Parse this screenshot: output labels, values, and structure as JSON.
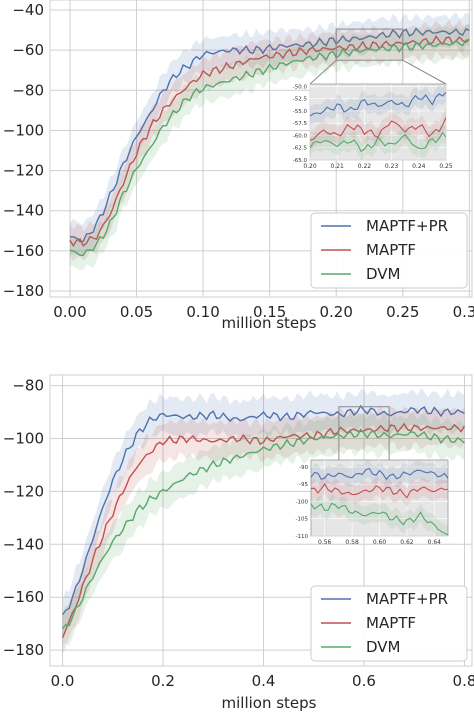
{
  "colors": {
    "plot_bg": "#eaeaf2",
    "grid": "#cfcfcf",
    "MAPTF+PR": "#4c72b0",
    "MAPTF": "#c44e52",
    "DVM": "#55a868",
    "inset_bg": "#e6e6e6"
  },
  "chart_data": [
    {
      "type": "line",
      "xlabel": "million steps",
      "ylabel": "",
      "xlim": [
        -0.015,
        0.302
      ],
      "ylim": [
        -183,
        -35
      ],
      "xticks": [
        0.0,
        0.05,
        0.1,
        0.15,
        0.2,
        0.25,
        0.3
      ],
      "xtick_labels": [
        "0.00",
        "0.05",
        "0.10",
        "0.15",
        "0.20",
        "0.25",
        "0.30"
      ],
      "yticks": [
        -40,
        -60,
        -80,
        -100,
        -120,
        -140,
        -160,
        -180
      ],
      "ytick_labels": [
        "−40",
        "−60",
        "−80",
        "−100",
        "−120",
        "−140",
        "−160",
        "−180"
      ],
      "grid": true,
      "legend_position": "lower-right",
      "series": [
        {
          "name": "MAPTF+PR",
          "x": [
            0.0,
            0.01,
            0.02,
            0.03,
            0.04,
            0.05,
            0.06,
            0.07,
            0.08,
            0.09,
            0.1,
            0.12,
            0.14,
            0.16,
            0.18,
            0.2,
            0.22,
            0.24,
            0.26,
            0.28,
            0.3
          ],
          "y": [
            -153,
            -155,
            -147,
            -133,
            -117,
            -103,
            -92,
            -80,
            -72,
            -67,
            -62,
            -60,
            -60,
            -58,
            -57,
            -55,
            -54,
            -52,
            -51,
            -51,
            -51
          ]
        },
        {
          "name": "MAPTF",
          "x": [
            0.0,
            0.01,
            0.02,
            0.03,
            0.04,
            0.05,
            0.06,
            0.07,
            0.08,
            0.09,
            0.1,
            0.12,
            0.14,
            0.16,
            0.18,
            0.2,
            0.22,
            0.24,
            0.26,
            0.28,
            0.3
          ],
          "y": [
            -155,
            -156,
            -153,
            -142,
            -126,
            -111,
            -99,
            -90,
            -83,
            -77,
            -72,
            -68,
            -64,
            -62,
            -60,
            -59,
            -58,
            -57,
            -56,
            -55,
            -55
          ]
        },
        {
          "name": "DVM",
          "x": [
            0.0,
            0.01,
            0.02,
            0.03,
            0.04,
            0.05,
            0.06,
            0.07,
            0.08,
            0.09,
            0.1,
            0.12,
            0.14,
            0.16,
            0.18,
            0.2,
            0.22,
            0.24,
            0.26,
            0.28,
            0.3
          ],
          "y": [
            -160,
            -162,
            -157,
            -147,
            -132,
            -119,
            -109,
            -98,
            -90,
            -83,
            -79,
            -75,
            -71,
            -67,
            -64,
            -62,
            -60,
            -59,
            -58,
            -57,
            -56
          ]
        }
      ],
      "inset": {
        "xlim": [
          0.2,
          0.25
        ],
        "ylim": [
          -65,
          -49.5
        ],
        "xticks": [
          0.2,
          0.21,
          0.22,
          0.23,
          0.24,
          0.25
        ],
        "xtick_labels": [
          "0.20",
          "0.21",
          "0.22",
          "0.23",
          "0.24",
          "0.25"
        ],
        "yticks": [
          -50,
          -52.5,
          -55,
          -57.5,
          -60,
          -62.5,
          -65
        ],
        "ytick_labels": [
          "-50.0",
          "-52.5",
          "-55.0",
          "-57.5",
          "-60.0",
          "-62.5",
          "-65.0"
        ],
        "series": [
          {
            "name": "MAPTF+PR",
            "x": [
              0.2,
              0.205,
              0.21,
              0.215,
              0.22,
              0.225,
              0.23,
              0.235,
              0.24,
              0.245,
              0.25
            ],
            "y": [
              -56,
              -55,
              -54,
              -55,
              -53,
              -54,
              -53,
              -54,
              -52,
              -53,
              -51
            ]
          },
          {
            "name": "MAPTF",
            "x": [
              0.2,
              0.205,
              0.21,
              0.215,
              0.22,
              0.225,
              0.23,
              0.235,
              0.24,
              0.245,
              0.25
            ],
            "y": [
              -61,
              -59,
              -60,
              -58,
              -59,
              -60,
              -57,
              -59,
              -58,
              -60,
              -57
            ]
          },
          {
            "name": "DVM",
            "x": [
              0.2,
              0.205,
              0.21,
              0.215,
              0.22,
              0.225,
              0.23,
              0.235,
              0.24,
              0.245,
              0.25
            ],
            "y": [
              -62,
              -61,
              -62,
              -61,
              -63,
              -61,
              -62,
              -60,
              -63,
              -61,
              -60
            ]
          }
        ]
      }
    },
    {
      "type": "line",
      "xlabel": "million steps",
      "ylabel": "",
      "xlim": [
        -0.025,
        0.815
      ],
      "ylim": [
        -186,
        -76
      ],
      "xticks": [
        0.0,
        0.2,
        0.4,
        0.6,
        0.8
      ],
      "xtick_labels": [
        "0.0",
        "0.2",
        "0.4",
        "0.6",
        "0.8"
      ],
      "yticks": [
        -80,
        -100,
        -120,
        -140,
        -160,
        -180
      ],
      "ytick_labels": [
        "−80",
        "−100",
        "−120",
        "−140",
        "−160",
        "−180"
      ],
      "grid": true,
      "legend_position": "lower-right",
      "series": [
        {
          "name": "MAPTF+PR",
          "x": [
            0.0,
            0.025,
            0.05,
            0.075,
            0.1,
            0.125,
            0.15,
            0.175,
            0.2,
            0.25,
            0.3,
            0.35,
            0.4,
            0.45,
            0.5,
            0.55,
            0.6,
            0.65,
            0.7,
            0.75,
            0.8
          ],
          "y": [
            -168,
            -158,
            -144,
            -129,
            -116,
            -106,
            -98,
            -93,
            -91,
            -92,
            -91,
            -93,
            -91,
            -92,
            -90,
            -91,
            -89,
            -91,
            -89,
            -90,
            -90
          ]
        },
        {
          "name": "MAPTF",
          "x": [
            0.0,
            0.025,
            0.05,
            0.075,
            0.1,
            0.125,
            0.15,
            0.175,
            0.2,
            0.25,
            0.3,
            0.35,
            0.4,
            0.45,
            0.5,
            0.55,
            0.6,
            0.65,
            0.7,
            0.75,
            0.8
          ],
          "y": [
            -175,
            -164,
            -151,
            -139,
            -128,
            -118,
            -110,
            -105,
            -101,
            -100,
            -101,
            -100,
            -101,
            -99,
            -99,
            -97,
            -97,
            -96,
            -96,
            -96,
            -96
          ]
        },
        {
          "name": "DVM",
          "x": [
            0.0,
            0.025,
            0.05,
            0.075,
            0.1,
            0.125,
            0.15,
            0.175,
            0.2,
            0.25,
            0.3,
            0.35,
            0.4,
            0.45,
            0.5,
            0.55,
            0.6,
            0.65,
            0.7,
            0.75,
            0.8
          ],
          "y": [
            -173,
            -166,
            -156,
            -147,
            -139,
            -133,
            -127,
            -123,
            -120,
            -114,
            -110,
            -107,
            -104,
            -102,
            -100,
            -99,
            -98,
            -99,
            -98,
            -100,
            -101
          ]
        }
      ],
      "inset": {
        "xlim": [
          0.55,
          0.65
        ],
        "ylim": [
          -110,
          -88
        ],
        "xticks": [
          0.56,
          0.58,
          0.6,
          0.62,
          0.64
        ],
        "xtick_labels": [
          "0.56",
          "0.58",
          "0.60",
          "0.62",
          "0.64"
        ],
        "yticks": [
          -90,
          -95,
          -100,
          -105,
          -110
        ],
        "ytick_labels": [
          "-90",
          "-95",
          "-100",
          "-105",
          "-110"
        ],
        "series": [
          {
            "name": "MAPTF+PR",
            "x": [
              0.55,
              0.56,
              0.57,
              0.58,
              0.59,
              0.6,
              0.61,
              0.62,
              0.63,
              0.64,
              0.65
            ],
            "y": [
              -92,
              -93,
              -92,
              -93,
              -91,
              -92,
              -93,
              -92,
              -91,
              -92,
              -93
            ]
          },
          {
            "name": "MAPTF",
            "x": [
              0.55,
              0.56,
              0.57,
              0.58,
              0.59,
              0.6,
              0.61,
              0.62,
              0.63,
              0.64,
              0.65
            ],
            "y": [
              -97,
              -96,
              -97,
              -98,
              -97,
              -96,
              -97,
              -98,
              -96,
              -97,
              -96
            ]
          },
          {
            "name": "DVM",
            "x": [
              0.55,
              0.56,
              0.57,
              0.58,
              0.59,
              0.6,
              0.61,
              0.62,
              0.63,
              0.64,
              0.65
            ],
            "y": [
              -101,
              -102,
              -101,
              -103,
              -104,
              -103,
              -105,
              -106,
              -104,
              -107,
              -110
            ]
          }
        ]
      }
    }
  ]
}
